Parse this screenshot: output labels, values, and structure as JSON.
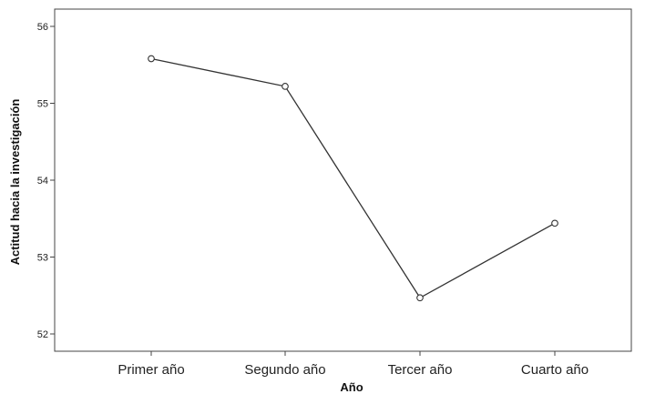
{
  "chart_data": {
    "type": "line",
    "categories": [
      "Primer año",
      "Segundo año",
      "Tercer año",
      "Cuarto año"
    ],
    "series": [
      {
        "values": [
          55.58,
          55.22,
          52.47,
          53.44
        ]
      }
    ],
    "xlabel": "Año",
    "ylabel": "Actitud hacia la investigación",
    "ylim": [
      51.8,
      56.2
    ],
    "yticks": [
      52,
      53,
      54,
      55,
      56
    ],
    "ytick_labels": [
      "52",
      "53",
      "54",
      "55",
      "56"
    ],
    "grid": false,
    "line_color": "#333333",
    "marker": "circle-open"
  }
}
